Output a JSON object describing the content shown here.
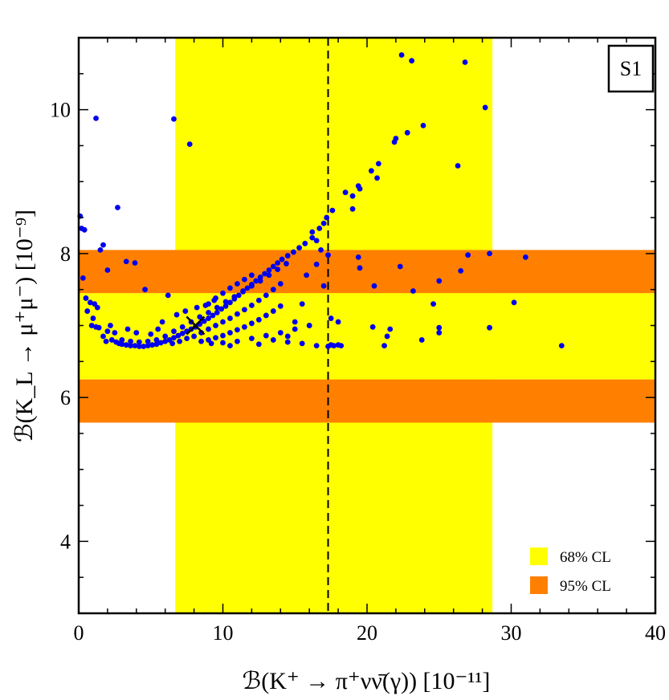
{
  "chart_data": {
    "type": "scatter",
    "panel_label": "S1",
    "xlabel": "ℬ(K⁺ → π⁺νν̄(γ))  [10⁻¹¹]",
    "ylabel": "ℬ(K_L → μ⁺μ⁻)  [10⁻⁹]",
    "xlim": [
      0,
      40
    ],
    "ylim": [
      3,
      11
    ],
    "xticks": [
      0,
      10,
      20,
      30,
      40
    ],
    "yticks": [
      4,
      6,
      8,
      10
    ],
    "colors": {
      "points": "#0000ee",
      "band_68": "#ffff00",
      "band_95": "#ff8000",
      "dashed_line": "#000000"
    },
    "bands": {
      "vertical_68": {
        "x": [
          6.7,
          28.7
        ]
      },
      "horizontal_68": {
        "y": [
          6.25,
          7.45
        ]
      },
      "horizontal_95": [
        {
          "y": [
            7.45,
            8.05
          ]
        },
        {
          "y": [
            5.65,
            6.25
          ]
        }
      ]
    },
    "central_value_x": 17.3,
    "marker_x": {
      "x": 8.1,
      "y": 7.0
    },
    "legend": [
      {
        "label": "68% CL",
        "color": "#ffff00"
      },
      {
        "label": "95% CL",
        "color": "#ff8000"
      }
    ],
    "points": [
      [
        0.1,
        8.52
      ],
      [
        0.2,
        8.35
      ],
      [
        0.4,
        8.33
      ],
      [
        0.3,
        7.66
      ],
      [
        0.5,
        7.38
      ],
      [
        0.8,
        7.32
      ],
      [
        0.6,
        7.2
      ],
      [
        1.0,
        7.1
      ],
      [
        1.1,
        7.3
      ],
      [
        1.2,
        6.98
      ],
      [
        1.3,
        7.25
      ],
      [
        0.9,
        7.0
      ],
      [
        1.4,
        6.97
      ],
      [
        1.7,
        6.85
      ],
      [
        1.9,
        6.78
      ],
      [
        1.2,
        9.88
      ],
      [
        1.5,
        8.05
      ],
      [
        1.7,
        8.12
      ],
      [
        2.0,
        7.77
      ],
      [
        2.7,
        8.64
      ],
      [
        3.3,
        7.89
      ],
      [
        3.9,
        7.87
      ],
      [
        4.6,
        7.5
      ],
      [
        5.8,
        7.05
      ],
      [
        6.2,
        7.42
      ],
      [
        6.6,
        9.87
      ],
      [
        7.7,
        9.52
      ],
      [
        2.0,
        6.92
      ],
      [
        2.3,
        6.8
      ],
      [
        2.6,
        6.77
      ],
      [
        2.8,
        6.75
      ],
      [
        3.0,
        6.74
      ],
      [
        3.3,
        6.73
      ],
      [
        3.6,
        6.72
      ],
      [
        3.9,
        6.72
      ],
      [
        4.2,
        6.71
      ],
      [
        4.5,
        6.71
      ],
      [
        4.8,
        6.72
      ],
      [
        5.1,
        6.73
      ],
      [
        5.4,
        6.74
      ],
      [
        5.7,
        6.76
      ],
      [
        6.0,
        6.78
      ],
      [
        6.3,
        6.8
      ],
      [
        6.6,
        6.83
      ],
      [
        6.9,
        6.86
      ],
      [
        7.2,
        6.89
      ],
      [
        7.5,
        6.92
      ],
      [
        7.8,
        6.95
      ],
      [
        8.1,
        6.98
      ],
      [
        8.4,
        7.02
      ],
      [
        8.7,
        7.06
      ],
      [
        9.0,
        7.1
      ],
      [
        9.3,
        7.14
      ],
      [
        9.6,
        7.18
      ],
      [
        9.9,
        7.23
      ],
      [
        10.2,
        7.27
      ],
      [
        10.5,
        7.32
      ],
      [
        10.8,
        7.37
      ],
      [
        11.1,
        7.42
      ],
      [
        11.4,
        7.47
      ],
      [
        11.7,
        7.52
      ],
      [
        12.0,
        7.57
      ],
      [
        12.3,
        7.62
      ],
      [
        12.6,
        7.67
      ],
      [
        12.9,
        7.72
      ],
      [
        13.2,
        7.77
      ],
      [
        13.5,
        7.82
      ],
      [
        13.8,
        7.87
      ],
      [
        14.1,
        7.92
      ],
      [
        14.5,
        7.97
      ],
      [
        14.9,
        8.02
      ],
      [
        15.3,
        8.08
      ],
      [
        15.7,
        8.14
      ],
      [
        16.2,
        8.22
      ],
      [
        16.7,
        8.35
      ],
      [
        17.2,
        8.5
      ],
      [
        2.5,
        6.9
      ],
      [
        3.0,
        6.8
      ],
      [
        3.6,
        6.78
      ],
      [
        4.2,
        6.77
      ],
      [
        4.8,
        6.78
      ],
      [
        5.4,
        6.8
      ],
      [
        6.0,
        6.85
      ],
      [
        6.6,
        6.92
      ],
      [
        7.2,
        6.98
      ],
      [
        7.8,
        7.05
      ],
      [
        8.4,
        7.12
      ],
      [
        9.0,
        7.18
      ],
      [
        9.6,
        7.25
      ],
      [
        10.2,
        7.33
      ],
      [
        10.8,
        7.4
      ],
      [
        11.4,
        7.48
      ],
      [
        12.0,
        7.55
      ],
      [
        12.6,
        7.62
      ],
      [
        13.2,
        7.7
      ],
      [
        13.8,
        7.78
      ],
      [
        14.4,
        7.86
      ],
      [
        6.5,
        6.75
      ],
      [
        7.0,
        6.78
      ],
      [
        7.5,
        6.82
      ],
      [
        8.0,
        6.85
      ],
      [
        8.5,
        6.9
      ],
      [
        9.0,
        6.95
      ],
      [
        9.5,
        7.0
      ],
      [
        10.0,
        7.05
      ],
      [
        10.5,
        7.1
      ],
      [
        11.0,
        7.16
      ],
      [
        11.5,
        7.22
      ],
      [
        12.0,
        7.28
      ],
      [
        12.5,
        7.35
      ],
      [
        13.0,
        7.42
      ],
      [
        13.5,
        7.5
      ],
      [
        14.0,
        7.58
      ],
      [
        8.5,
        6.78
      ],
      [
        9.0,
        6.8
      ],
      [
        9.5,
        6.83
      ],
      [
        10.0,
        6.86
      ],
      [
        10.5,
        6.9
      ],
      [
        11.0,
        6.94
      ],
      [
        11.5,
        6.98
      ],
      [
        12.0,
        7.03
      ],
      [
        12.5,
        7.08
      ],
      [
        13.0,
        7.14
      ],
      [
        13.5,
        7.2
      ],
      [
        14.0,
        7.27
      ],
      [
        9.0,
        7.3
      ],
      [
        9.5,
        7.38
      ],
      [
        10.0,
        7.45
      ],
      [
        10.5,
        7.52
      ],
      [
        11.0,
        7.58
      ],
      [
        11.5,
        7.64
      ],
      [
        12.0,
        7.7
      ],
      [
        9.2,
        6.75
      ],
      [
        10.0,
        6.76
      ],
      [
        11.0,
        6.78
      ],
      [
        12.0,
        6.82
      ],
      [
        13.0,
        6.86
      ],
      [
        14.0,
        6.9
      ],
      [
        15.0,
        6.95
      ],
      [
        16.0,
        7.0
      ],
      [
        10.5,
        6.72
      ],
      [
        12.5,
        6.74
      ],
      [
        14.5,
        6.77
      ],
      [
        15.5,
        6.75
      ],
      [
        16.5,
        6.72
      ],
      [
        17.3,
        6.71
      ],
      [
        18.2,
        6.72
      ],
      [
        17.5,
        6.73
      ],
      [
        13.5,
        6.8
      ],
      [
        14.5,
        6.85
      ],
      [
        15.0,
        7.05
      ],
      [
        15.5,
        7.3
      ],
      [
        16.0,
        7.0
      ],
      [
        17.0,
        7.55
      ],
      [
        15.8,
        7.7
      ],
      [
        16.5,
        7.85
      ],
      [
        17.3,
        7.98
      ],
      [
        16.8,
        8.05
      ],
      [
        17.5,
        7.1
      ],
      [
        17.7,
        6.72
      ],
      [
        18.0,
        6.73
      ],
      [
        16.2,
        8.3
      ],
      [
        16.5,
        8.18
      ],
      [
        17.0,
        8.42
      ],
      [
        17.6,
        8.6
      ],
      [
        18.5,
        8.85
      ],
      [
        19.0,
        8.8
      ],
      [
        19.0,
        8.62
      ],
      [
        19.4,
        8.94
      ],
      [
        19.5,
        8.9
      ],
      [
        20.3,
        9.15
      ],
      [
        20.7,
        9.05
      ],
      [
        20.8,
        9.25
      ],
      [
        21.9,
        9.55
      ],
      [
        22.0,
        9.6
      ],
      [
        22.8,
        9.68
      ],
      [
        23.9,
        9.78
      ],
      [
        26.3,
        9.22
      ],
      [
        22.4,
        10.76
      ],
      [
        23.1,
        10.68
      ],
      [
        26.8,
        10.66
      ],
      [
        28.2,
        10.03
      ],
      [
        19.4,
        7.95
      ],
      [
        19.5,
        7.8
      ],
      [
        20.5,
        7.55
      ],
      [
        22.3,
        7.82
      ],
      [
        23.2,
        7.48
      ],
      [
        24.6,
        7.3
      ],
      [
        25.0,
        7.62
      ],
      [
        26.5,
        7.76
      ],
      [
        27.0,
        7.98
      ],
      [
        28.5,
        8.0
      ],
      [
        30.2,
        7.32
      ],
      [
        31.0,
        7.95
      ],
      [
        20.4,
        6.98
      ],
      [
        21.2,
        6.72
      ],
      [
        21.4,
        6.85
      ],
      [
        21.6,
        6.95
      ],
      [
        23.8,
        6.8
      ],
      [
        25.0,
        6.9
      ],
      [
        25.0,
        6.97
      ],
      [
        28.5,
        6.97
      ],
      [
        33.5,
        6.72
      ],
      [
        18.0,
        7.05
      ],
      [
        2.2,
        7.0
      ],
      [
        3.4,
        6.95
      ],
      [
        4.0,
        6.9
      ],
      [
        5.0,
        6.88
      ],
      [
        5.5,
        6.95
      ],
      [
        6.8,
        7.15
      ],
      [
        7.4,
        7.2
      ],
      [
        8.2,
        7.25
      ],
      [
        8.8,
        7.28
      ],
      [
        9.4,
        7.35
      ]
    ]
  }
}
